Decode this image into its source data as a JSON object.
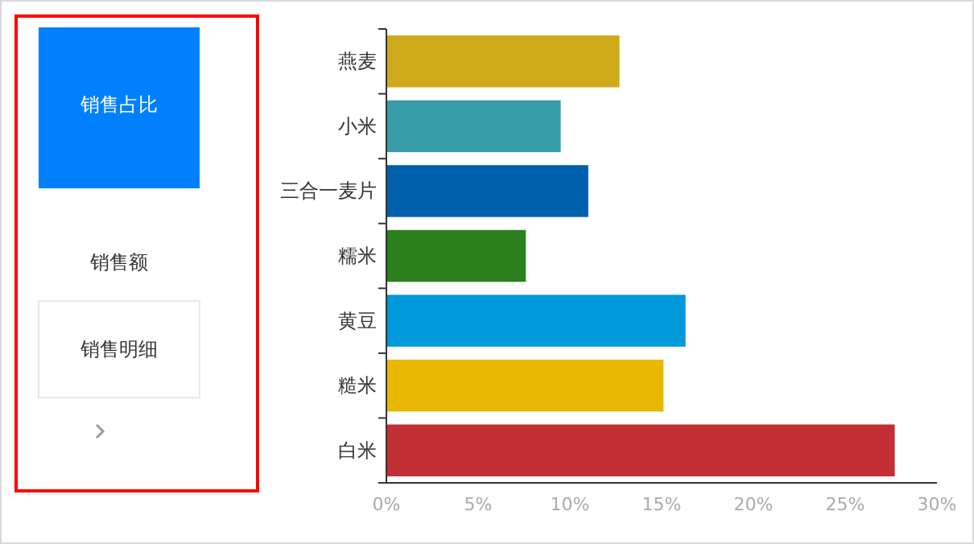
{
  "chart_data": {
    "type": "bar",
    "orientation": "horizontal",
    "categories": [
      "燕麦",
      "小米",
      "三合一麦片",
      "糯米",
      "黄豆",
      "糙米",
      "白米"
    ],
    "values": [
      12.7,
      9.5,
      11.0,
      7.6,
      16.3,
      15.1,
      27.7
    ],
    "colors": [
      "#cea91a",
      "#379ea9",
      "#005fab",
      "#2c801e",
      "#0099da",
      "#e8b700",
      "#c22f35"
    ],
    "xlim": [
      0,
      30
    ],
    "xticks": [
      {
        "value": 0,
        "label": "0%"
      },
      {
        "value": 5,
        "label": "5%"
      },
      {
        "value": 10,
        "label": "10%"
      },
      {
        "value": 15,
        "label": "15%"
      },
      {
        "value": 20,
        "label": "20%"
      },
      {
        "value": 25,
        "label": "25%"
      },
      {
        "value": 30,
        "label": "30%"
      }
    ],
    "grid": false,
    "annotations": [
      "销售占比",
      "销售额",
      "销售明细"
    ]
  }
}
